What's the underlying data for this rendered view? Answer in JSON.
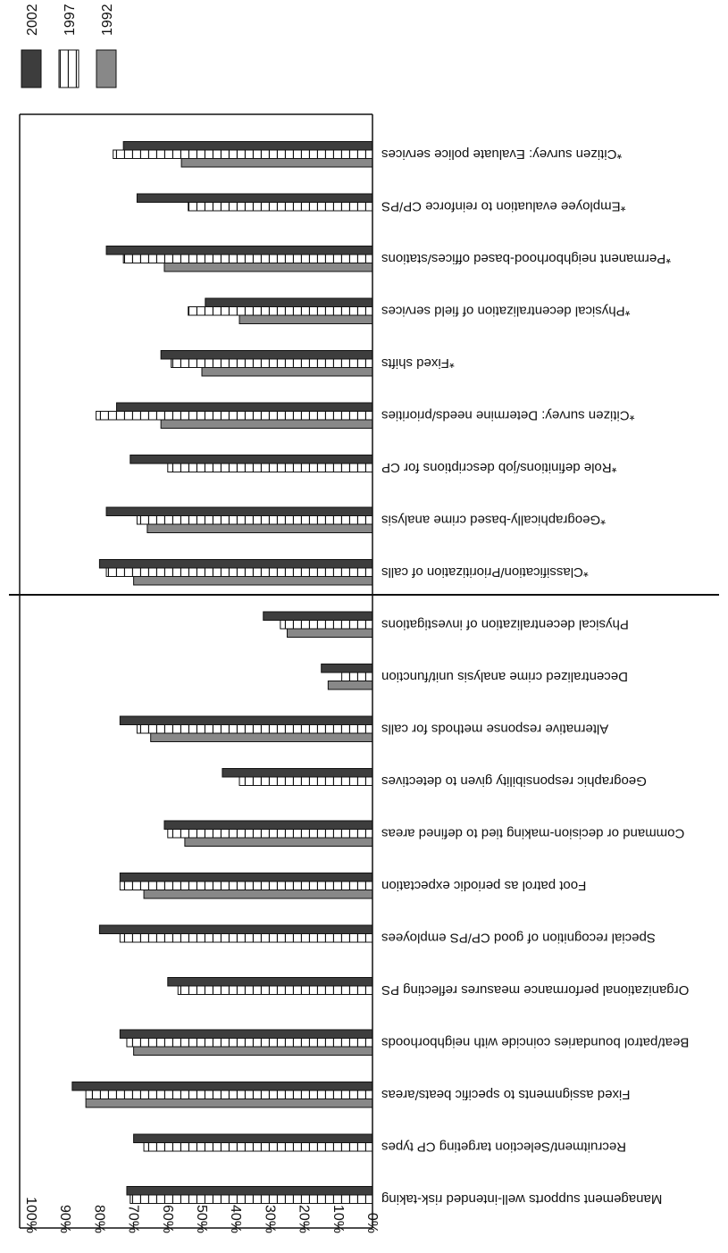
{
  "chart_data": {
    "type": "bar",
    "orientation": "horizontal",
    "image_rotated_degrees": 180,
    "categories": [
      "Management supports well-intended risk-taking",
      "Recruitment/Selection targeting CP types",
      "Fixed assignments to specific beats/areas",
      "Beat/patrol boundaries coincide with neighborhoods",
      "Organizational performance measures reflecting PS",
      "Special recognition of good CP/PS employees",
      "Foot patrol as periodic expectation",
      "Command or decision-making tied to defined areas",
      "Geographic responsibility given to detectives",
      "Alternative response methods for calls",
      "Decentralized crime analysis unit/function",
      "Physical decentralization of investigations",
      "*Classification/Prioritization of calls",
      "*Geographically-based crime analysis",
      "*Role definitions/job descriptions for CP",
      "*Citizen survey: Determine needs/priorities",
      "*Fixed shifts",
      "*Physical decentralization of field services",
      "*Permanent neighborhood-based offices/stations",
      "*Employee evaluation to reinforce CP/PS",
      "*Citizen survey: Evaluate police services"
    ],
    "series": [
      {
        "name": "1992",
        "color": "#888888",
        "pattern": "solid",
        "values": [
          null,
          null,
          84,
          70,
          null,
          null,
          67,
          55,
          null,
          65,
          13,
          25,
          70,
          66,
          null,
          62,
          50,
          39,
          61,
          null,
          56
        ]
      },
      {
        "name": "1997",
        "color": "#ffffff",
        "pattern": "vertical-stripes",
        "values": [
          71,
          67,
          84,
          72,
          57,
          74,
          74,
          60,
          39,
          69,
          9,
          27,
          78,
          69,
          60,
          81,
          59,
          54,
          73,
          54,
          76
        ]
      },
      {
        "name": "2002",
        "color": "#3d3d3d",
        "pattern": "solid",
        "values": [
          72,
          70,
          88,
          74,
          60,
          80,
          74,
          61,
          44,
          74,
          15,
          32,
          80,
          78,
          71,
          75,
          62,
          49,
          78,
          69,
          73
        ]
      }
    ],
    "xticks": [
      "0%",
      "10%",
      "20%",
      "30%",
      "40%",
      "50%",
      "60%",
      "70%",
      "80%",
      "90%",
      "100%"
    ],
    "xlim": [
      0,
      100
    ],
    "separator_after_category_index": 11,
    "legend": {
      "placement": "top-left",
      "entries": [
        "1992",
        "1997",
        "2002"
      ]
    },
    "grid": false
  }
}
